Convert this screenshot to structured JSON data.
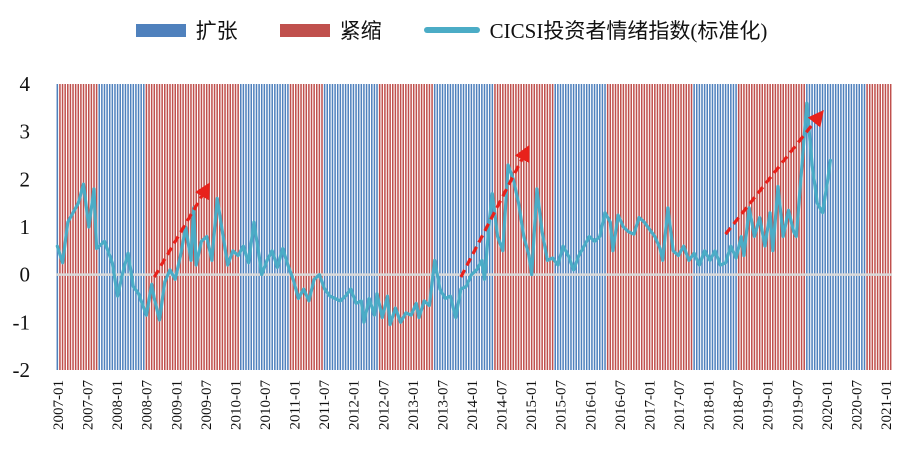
{
  "chart_data": {
    "type": "bar+line",
    "title": "",
    "xlabel": "",
    "ylabel": "",
    "ylim": [
      -2,
      4
    ],
    "yticks": [
      "-2",
      "-1",
      "0",
      "1",
      "2",
      "3",
      "4"
    ],
    "xtick_labels": [
      "2007-01",
      "2007-07",
      "2008-01",
      "2008-07",
      "2009-01",
      "2009-07",
      "2010-01",
      "2010-07",
      "2011-01",
      "2011-07",
      "2012-01",
      "2012-07",
      "2013-01",
      "2013-07",
      "2014-01",
      "2014-07",
      "2015-01",
      "2015-07",
      "2016-01",
      "2016-07",
      "2017-01",
      "2017-07",
      "2018-01",
      "2018-07",
      "2019-01",
      "2019-07",
      "2020-01",
      "2020-07",
      "2021-01"
    ],
    "legend": {
      "expansion": "扩张",
      "contraction": "紧缩",
      "index": "CICSI投资者情绪指数(标准化)"
    },
    "colors": {
      "expansion": "#4f81bd",
      "contraction": "#c0504d",
      "index": "#4bacc6",
      "trend_arrow": "#e8211b",
      "zero_line": "#d9d9d9"
    },
    "regimes": [
      {
        "start": 0,
        "end": 1,
        "state": "expansion"
      },
      {
        "start": 1,
        "end": 16,
        "state": "contraction"
      },
      {
        "start": 16,
        "end": 34,
        "state": "expansion"
      },
      {
        "start": 34,
        "end": 70,
        "state": "contraction"
      },
      {
        "start": 70,
        "end": 89,
        "state": "expansion"
      },
      {
        "start": 89,
        "end": 102,
        "state": "contraction"
      },
      {
        "start": 102,
        "end": 123,
        "state": "expansion"
      },
      {
        "start": 123,
        "end": 144,
        "state": "contraction"
      },
      {
        "start": 144,
        "end": 167,
        "state": "expansion"
      },
      {
        "start": 167,
        "end": 190,
        "state": "contraction"
      },
      {
        "start": 190,
        "end": 210,
        "state": "expansion"
      },
      {
        "start": 210,
        "end": 243,
        "state": "contraction"
      },
      {
        "start": 243,
        "end": 260,
        "state": "expansion"
      },
      {
        "start": 260,
        "end": 286,
        "state": "contraction"
      },
      {
        "start": 286,
        "end": 309,
        "state": "expansion"
      },
      {
        "start": 309,
        "end": 319,
        "state": "contraction"
      }
    ],
    "index_keypoints": [
      [
        0,
        0.6
      ],
      [
        2,
        0.25
      ],
      [
        4,
        1.1
      ],
      [
        8,
        1.5
      ],
      [
        10,
        1.9
      ],
      [
        12,
        1.0
      ],
      [
        14,
        1.8
      ],
      [
        15,
        0.55
      ],
      [
        18,
        0.7
      ],
      [
        21,
        0.25
      ],
      [
        23,
        -0.45
      ],
      [
        25,
        0.05
      ],
      [
        27,
        0.45
      ],
      [
        29,
        -0.25
      ],
      [
        31,
        -0.4
      ],
      [
        34,
        -0.85
      ],
      [
        36,
        -0.2
      ],
      [
        37,
        -0.5
      ],
      [
        39,
        -0.95
      ],
      [
        41,
        -0.15
      ],
      [
        43,
        0.1
      ],
      [
        45,
        -0.1
      ],
      [
        47,
        0.4
      ],
      [
        49,
        1.0
      ],
      [
        51,
        0.3
      ],
      [
        52,
        1.4
      ],
      [
        53,
        0.2
      ],
      [
        55,
        0.7
      ],
      [
        57,
        0.8
      ],
      [
        59,
        0.3
      ],
      [
        61,
        1.6
      ],
      [
        63,
        0.9
      ],
      [
        65,
        0.2
      ],
      [
        67,
        0.5
      ],
      [
        69,
        0.4
      ],
      [
        71,
        0.6
      ],
      [
        73,
        0.25
      ],
      [
        75,
        1.1
      ],
      [
        77,
        0.4
      ],
      [
        78,
        0.0
      ],
      [
        80,
        0.3
      ],
      [
        82,
        0.5
      ],
      [
        84,
        0.15
      ],
      [
        86,
        0.55
      ],
      [
        88,
        0.2
      ],
      [
        90,
        -0.1
      ],
      [
        92,
        -0.5
      ],
      [
        94,
        -0.3
      ],
      [
        96,
        -0.55
      ],
      [
        98,
        -0.1
      ],
      [
        100,
        0.0
      ],
      [
        102,
        -0.3
      ],
      [
        104,
        -0.45
      ],
      [
        106,
        -0.5
      ],
      [
        108,
        -0.55
      ],
      [
        110,
        -0.45
      ],
      [
        112,
        -0.3
      ],
      [
        114,
        -0.6
      ],
      [
        116,
        -0.55
      ],
      [
        117,
        -1.0
      ],
      [
        119,
        -0.5
      ],
      [
        121,
        -0.85
      ],
      [
        122,
        -0.4
      ],
      [
        124,
        -0.9
      ],
      [
        126,
        -0.45
      ],
      [
        127,
        -1.05
      ],
      [
        129,
        -0.7
      ],
      [
        131,
        -1.0
      ],
      [
        133,
        -0.8
      ],
      [
        135,
        -0.85
      ],
      [
        137,
        -0.6
      ],
      [
        138,
        -0.9
      ],
      [
        140,
        -0.55
      ],
      [
        142,
        -0.65
      ],
      [
        144,
        0.3
      ],
      [
        146,
        -0.3
      ],
      [
        148,
        -0.5
      ],
      [
        150,
        -0.45
      ],
      [
        152,
        -0.9
      ],
      [
        154,
        -0.3
      ],
      [
        156,
        -0.25
      ],
      [
        158,
        0.0
      ],
      [
        160,
        0.1
      ],
      [
        162,
        0.3
      ],
      [
        163,
        -0.1
      ],
      [
        165,
        1.2
      ],
      [
        166,
        1.7
      ],
      [
        168,
        0.8
      ],
      [
        170,
        0.5
      ],
      [
        172,
        2.3
      ],
      [
        174,
        2.0
      ],
      [
        176,
        1.5
      ],
      [
        178,
        0.8
      ],
      [
        180,
        0.4
      ],
      [
        181,
        0.0
      ],
      [
        183,
        1.8
      ],
      [
        185,
        0.9
      ],
      [
        187,
        0.3
      ],
      [
        189,
        0.35
      ],
      [
        191,
        0.2
      ],
      [
        193,
        0.6
      ],
      [
        195,
        0.4
      ],
      [
        197,
        0.1
      ],
      [
        199,
        0.4
      ],
      [
        201,
        0.6
      ],
      [
        203,
        0.8
      ],
      [
        205,
        0.7
      ],
      [
        207,
        0.8
      ],
      [
        209,
        1.3
      ],
      [
        211,
        1.1
      ],
      [
        212,
        0.5
      ],
      [
        214,
        1.25
      ],
      [
        216,
        1.0
      ],
      [
        218,
        0.9
      ],
      [
        220,
        0.85
      ],
      [
        222,
        1.2
      ],
      [
        224,
        1.1
      ],
      [
        226,
        0.95
      ],
      [
        228,
        0.8
      ],
      [
        230,
        0.55
      ],
      [
        231,
        0.3
      ],
      [
        233,
        1.4
      ],
      [
        235,
        0.5
      ],
      [
        237,
        0.4
      ],
      [
        239,
        0.6
      ],
      [
        241,
        0.3
      ],
      [
        243,
        0.45
      ],
      [
        245,
        0.2
      ],
      [
        247,
        0.5
      ],
      [
        249,
        0.3
      ],
      [
        251,
        0.5
      ],
      [
        253,
        0.2
      ],
      [
        255,
        0.25
      ],
      [
        257,
        0.6
      ],
      [
        259,
        0.35
      ],
      [
        261,
        0.8
      ],
      [
        262,
        0.4
      ],
      [
        264,
        1.4
      ],
      [
        266,
        0.8
      ],
      [
        268,
        1.2
      ],
      [
        270,
        0.6
      ],
      [
        272,
        1.3
      ],
      [
        273,
        0.5
      ],
      [
        275,
        1.85
      ],
      [
        277,
        0.8
      ],
      [
        279,
        1.35
      ],
      [
        281,
        0.9
      ],
      [
        282,
        0.8
      ],
      [
        284,
        2.2
      ],
      [
        286,
        3.6
      ],
      [
        288,
        2.3
      ],
      [
        290,
        1.5
      ],
      [
        292,
        1.3
      ],
      [
        294,
        2.0
      ],
      [
        295,
        2.4
      ]
    ],
    "trend_arrows": [
      [
        37,
        -0.05,
        57,
        1.82
      ],
      [
        154,
        -0.05,
        179,
        2.6
      ],
      [
        255,
        0.85,
        291,
        3.35
      ]
    ]
  }
}
